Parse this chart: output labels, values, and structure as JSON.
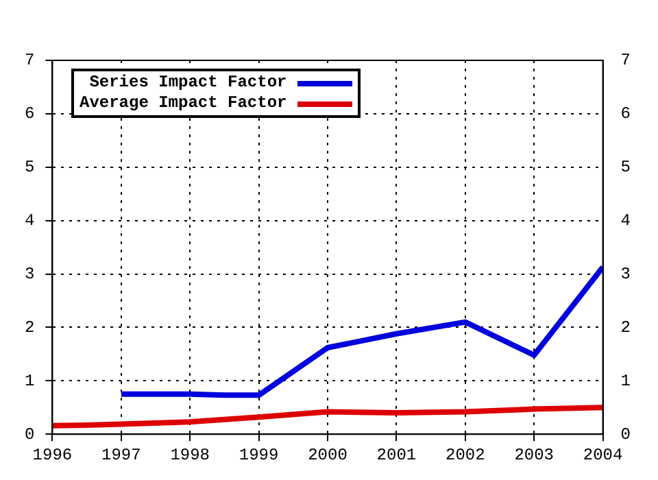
{
  "chart_data": {
    "type": "line",
    "xlim": [
      1996,
      2004
    ],
    "xticks": [
      1996,
      1997,
      1998,
      1999,
      2000,
      2001,
      2002,
      2003,
      2004
    ],
    "ylim": [
      0,
      7
    ],
    "yticks": [
      0,
      1,
      2,
      3,
      4,
      5,
      6,
      7
    ],
    "y2lim": [
      0,
      7
    ],
    "y2ticks": [
      0,
      1,
      2,
      3,
      4,
      5,
      6,
      7
    ],
    "grid": true,
    "legend": "top left",
    "marker": "none",
    "line_style": "solid",
    "series": [
      {
        "name": "Series Impact Factor",
        "color": "#0000dd",
        "x": [
          1997,
          1998,
          1998.5,
          1999,
          2000,
          2001,
          2002,
          2003,
          2004
        ],
        "values": [
          0.75,
          0.75,
          0.73,
          0.73,
          1.62,
          1.88,
          2.1,
          1.48,
          3.13
        ]
      },
      {
        "name": "Average Impact Factor",
        "color": "#dd0000",
        "x": [
          1996,
          1996.5,
          1997,
          1998,
          1999,
          2000,
          2001,
          2002,
          2003,
          2004
        ],
        "values": [
          0.16,
          0.17,
          0.19,
          0.23,
          0.32,
          0.42,
          0.4,
          0.42,
          0.47,
          0.5
        ]
      }
    ]
  }
}
